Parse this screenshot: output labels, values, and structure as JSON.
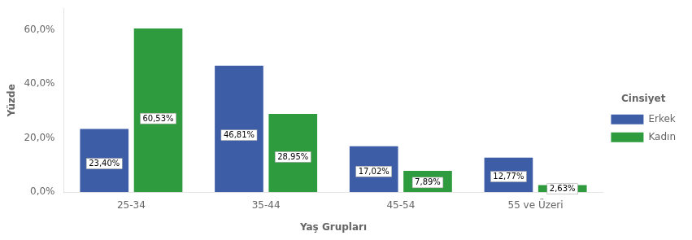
{
  "chart_data": {
    "type": "bar",
    "xlabel": "Yaş Grupları",
    "ylabel": "Yüzde",
    "categories": [
      "25-34",
      "35-44",
      "45-54",
      "55 ve Üzeri"
    ],
    "series": [
      {
        "name": "Erkek",
        "color": "#3d5da7",
        "values": [
          23.4,
          46.81,
          17.02,
          12.77
        ],
        "value_labels": [
          "23,40%",
          "46,81%",
          "17,02%",
          "12,77%"
        ]
      },
      {
        "name": "Kadın",
        "color": "#2e9b3e",
        "values": [
          60.53,
          28.95,
          7.89,
          2.63
        ],
        "value_labels": [
          "60,53%",
          "28,95%",
          "7,89%",
          "2,63%"
        ]
      }
    ],
    "ylim": [
      0,
      68
    ],
    "yticks": [
      {
        "value": 0,
        "label": "0,0%"
      },
      {
        "value": 20,
        "label": "20,0%"
      },
      {
        "value": 40,
        "label": "40,0%"
      },
      {
        "value": 60,
        "label": "60,0%"
      }
    ],
    "grid": false,
    "legend": "right",
    "legend_title": "Cinsiyet",
    "data_labels": true
  }
}
